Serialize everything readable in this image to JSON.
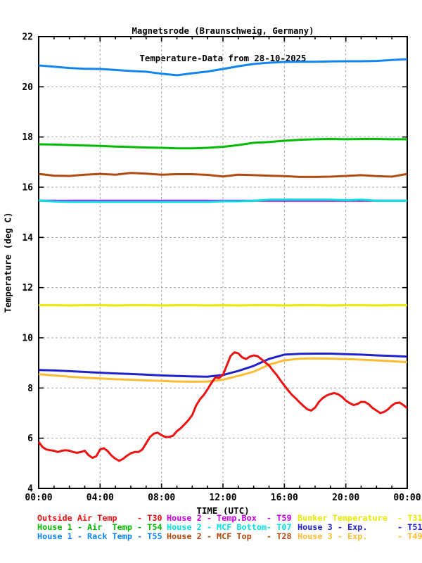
{
  "title": {
    "line1": "Magnetsrode (Braunschweig, Germany)",
    "line2": "Temperature-Data from 28-10-2025"
  },
  "chart_data": {
    "type": "line",
    "title": "Magnetsrode (Braunschweig, Germany) — Temperature-Data from 28-10-2025",
    "xlabel": "TIME (UTC)",
    "ylabel": "Temperature (deg C)",
    "xlim_hours": [
      0,
      24
    ],
    "ylim": [
      4,
      22
    ],
    "grid": true,
    "x_major_ticks_hours": [
      0,
      4,
      8,
      12,
      16,
      20,
      24
    ],
    "x_tick_labels": [
      "00:00",
      "04:00",
      "08:00",
      "12:00",
      "16:00",
      "20:00",
      "00:00"
    ],
    "x_minor_step_hours": 1,
    "y_major_ticks": [
      4,
      6,
      8,
      10,
      12,
      14,
      16,
      18,
      20,
      22
    ],
    "y_grid_values": [
      6,
      8,
      10,
      12,
      14,
      16,
      18,
      20
    ],
    "x_grid_hours": [
      4,
      8,
      12,
      16,
      20
    ],
    "series": [
      {
        "name": "Bunker Temperature",
        "code": "T31",
        "color": "#e8e800",
        "x_step": 1,
        "values": [
          11.3,
          11.3,
          11.29,
          11.3,
          11.3,
          11.29,
          11.3,
          11.3,
          11.29,
          11.3,
          11.3,
          11.29,
          11.3,
          11.29,
          11.3,
          11.3,
          11.29,
          11.3,
          11.3,
          11.29,
          11.3,
          11.3,
          11.29,
          11.3,
          11.3
        ]
      },
      {
        "name": "House 2 - Temp.Box",
        "code": "T59",
        "color": "#c400e0",
        "x_step": 1,
        "values": [
          15.46,
          15.46,
          15.46,
          15.46,
          15.46,
          15.46,
          15.46,
          15.46,
          15.46,
          15.46,
          15.46,
          15.46,
          15.46,
          15.46,
          15.46,
          15.46,
          15.46,
          15.46,
          15.46,
          15.46,
          15.46,
          15.46,
          15.46,
          15.46,
          15.46
        ]
      },
      {
        "name": "House 2 - MCF Bottom",
        "code": "T07",
        "color": "#00e2e2",
        "x_step": 1,
        "values": [
          15.47,
          15.43,
          15.42,
          15.42,
          15.42,
          15.42,
          15.42,
          15.42,
          15.42,
          15.42,
          15.42,
          15.42,
          15.44,
          15.44,
          15.46,
          15.5,
          15.5,
          15.5,
          15.5,
          15.5,
          15.48,
          15.5,
          15.46,
          15.46,
          15.46
        ]
      },
      {
        "name": "House 2 - MCF Top",
        "code": "T28",
        "color": "#b04a10",
        "x_step": 1,
        "values": [
          16.53,
          16.46,
          16.45,
          16.5,
          16.53,
          16.5,
          16.57,
          16.54,
          16.5,
          16.52,
          16.52,
          16.49,
          16.43,
          16.5,
          16.48,
          16.46,
          16.44,
          16.41,
          16.41,
          16.42,
          16.45,
          16.48,
          16.44,
          16.42,
          16.53
        ]
      },
      {
        "name": "House 1 - Air  Temp",
        "code": "T54",
        "color": "#00bb00",
        "x_step": 1,
        "values": [
          17.71,
          17.7,
          17.68,
          17.66,
          17.65,
          17.62,
          17.6,
          17.58,
          17.57,
          17.55,
          17.55,
          17.57,
          17.61,
          17.68,
          17.77,
          17.8,
          17.85,
          17.89,
          17.91,
          17.92,
          17.91,
          17.92,
          17.92,
          17.91,
          17.91
        ]
      },
      {
        "name": "House 1 - Rack Temp",
        "code": "T55",
        "color": "#1285f0",
        "x_step": 1,
        "values": [
          20.85,
          20.8,
          20.75,
          20.72,
          20.71,
          20.67,
          20.63,
          20.6,
          20.52,
          20.46,
          20.54,
          20.61,
          20.71,
          20.82,
          20.91,
          20.96,
          20.99,
          21.0,
          21.0,
          21.01,
          21.02,
          21.02,
          21.03,
          21.07,
          21.1
        ]
      },
      {
        "name": "House 3 - Exp.",
        "code": "T49",
        "color": "#ffbb33",
        "x_step": 1,
        "values": [
          8.55,
          8.5,
          8.45,
          8.41,
          8.38,
          8.35,
          8.33,
          8.3,
          8.28,
          8.26,
          8.25,
          8.26,
          8.33,
          8.48,
          8.65,
          8.93,
          9.1,
          9.17,
          9.18,
          9.17,
          9.15,
          9.13,
          9.1,
          9.07,
          9.03
        ]
      },
      {
        "name": "House 3 - Exp.",
        "code": "T51",
        "color": "#2222cc",
        "x_step": 1,
        "values": [
          8.72,
          8.7,
          8.67,
          8.64,
          8.61,
          8.58,
          8.56,
          8.53,
          8.5,
          8.48,
          8.46,
          8.45,
          8.52,
          8.68,
          8.88,
          9.16,
          9.33,
          9.36,
          9.37,
          9.37,
          9.35,
          9.33,
          9.3,
          9.28,
          9.25
        ]
      },
      {
        "name": "Outside Air Temp",
        "code": "T30",
        "color": "#ee1111",
        "x_step": 0.25,
        "values": [
          5.85,
          5.65,
          5.55,
          5.52,
          5.5,
          5.45,
          5.5,
          5.52,
          5.5,
          5.45,
          5.42,
          5.45,
          5.5,
          5.32,
          5.22,
          5.28,
          5.55,
          5.6,
          5.48,
          5.3,
          5.18,
          5.1,
          5.18,
          5.3,
          5.4,
          5.45,
          5.45,
          5.55,
          5.8,
          6.05,
          6.18,
          6.22,
          6.12,
          6.05,
          6.05,
          6.1,
          6.28,
          6.4,
          6.55,
          6.72,
          6.92,
          7.3,
          7.55,
          7.72,
          7.95,
          8.2,
          8.42,
          8.4,
          8.52,
          8.9,
          9.28,
          9.42,
          9.38,
          9.22,
          9.15,
          9.25,
          9.3,
          9.27,
          9.15,
          9.02,
          8.9,
          8.7,
          8.52,
          8.3,
          8.1,
          7.9,
          7.72,
          7.58,
          7.42,
          7.28,
          7.15,
          7.1,
          7.22,
          7.45,
          7.6,
          7.7,
          7.76,
          7.8,
          7.75,
          7.65,
          7.5,
          7.4,
          7.32,
          7.36,
          7.45,
          7.44,
          7.35,
          7.2,
          7.1,
          7.0,
          7.05,
          7.15,
          7.3,
          7.4,
          7.42,
          7.32,
          7.2
        ]
      }
    ]
  },
  "legend": {
    "entries": [
      {
        "text": "Outside Air Temp    - T30",
        "code": "T30",
        "color": "#ee1111"
      },
      {
        "text": "House 1 - Air  Temp - T54",
        "code": "T54",
        "color": "#00bb00"
      },
      {
        "text": "House 1 - Rack Temp - T55",
        "code": "T55",
        "color": "#1285f0"
      },
      {
        "text": "House 2 - Temp.Box  - T59",
        "code": "T59",
        "color": "#c400e0"
      },
      {
        "text": "House 2 - MCF Bottom- T07",
        "code": "T07",
        "color": "#00e2e2"
      },
      {
        "text": "House 2 - MCF Top   - T28",
        "code": "T28",
        "color": "#b04a10"
      },
      {
        "text": "Bunker Temperature  - T31",
        "code": "T31",
        "color": "#e8e800"
      },
      {
        "text": "House 3 - Exp.      - T51",
        "code": "T51",
        "color": "#2222cc"
      },
      {
        "text": "House 3 - Exp.      - T49",
        "code": "T49",
        "color": "#ffbb33"
      }
    ]
  }
}
